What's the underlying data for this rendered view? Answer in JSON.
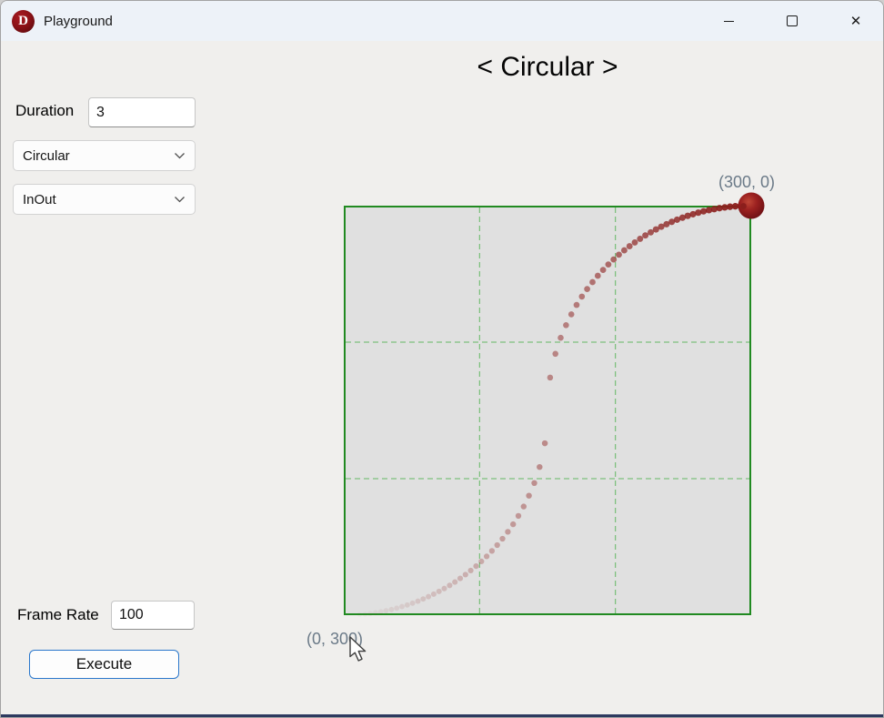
{
  "window": {
    "title": "Playground",
    "logo_letter": "D"
  },
  "icons": {
    "app_logo": "letter-D-red-badge",
    "minimize": "minimize-line",
    "maximize": "maximize-square",
    "close": "✕",
    "select_chevron": "chevron-down",
    "cursor": "arrow-pointer"
  },
  "panel": {
    "duration_label": "Duration",
    "duration_value": "3",
    "easing_value": "Circular",
    "mode_value": "InOut",
    "frame_rate_label": "Frame Rate",
    "frame_rate_value": "100",
    "execute_label": "Execute"
  },
  "main": {
    "heading": "< Circular >",
    "end_label": "(300, 0)",
    "start_label": "(0, 300)"
  },
  "colors": {
    "titlebar_bg": "#edf2f8",
    "body_bg": "#f0efed",
    "accent_blue": "#2a77cc",
    "logo_red": "#8d1217"
  },
  "chart_data": {
    "type": "scatter",
    "title": "< Circular >",
    "easing_function": "circular",
    "easing_mode": "in-out",
    "duration_seconds": 3,
    "frame_rate": 100,
    "x_range": [
      0,
      300
    ],
    "y_range": [
      0,
      300
    ],
    "start_point": [
      0,
      300
    ],
    "end_point": [
      300,
      0
    ],
    "grid_divisions": 3,
    "grid_style": "dashed",
    "n_points": 78,
    "points_sample": [
      [
        0,
        300
      ],
      [
        30,
        297
      ],
      [
        60,
        287.5
      ],
      [
        90,
        270
      ],
      [
        120,
        240
      ],
      [
        150,
        150
      ],
      [
        180,
        60
      ],
      [
        210,
        30
      ],
      [
        240,
        12.5
      ],
      [
        270,
        3
      ],
      [
        300,
        0
      ]
    ],
    "dot_color": "#8b1e1c",
    "ball_color": "#9c2120",
    "border_color": "#218a21",
    "grid_color": "#63b763",
    "plot_bg": "#e0e0e0",
    "label_color": "#6b7a88"
  }
}
